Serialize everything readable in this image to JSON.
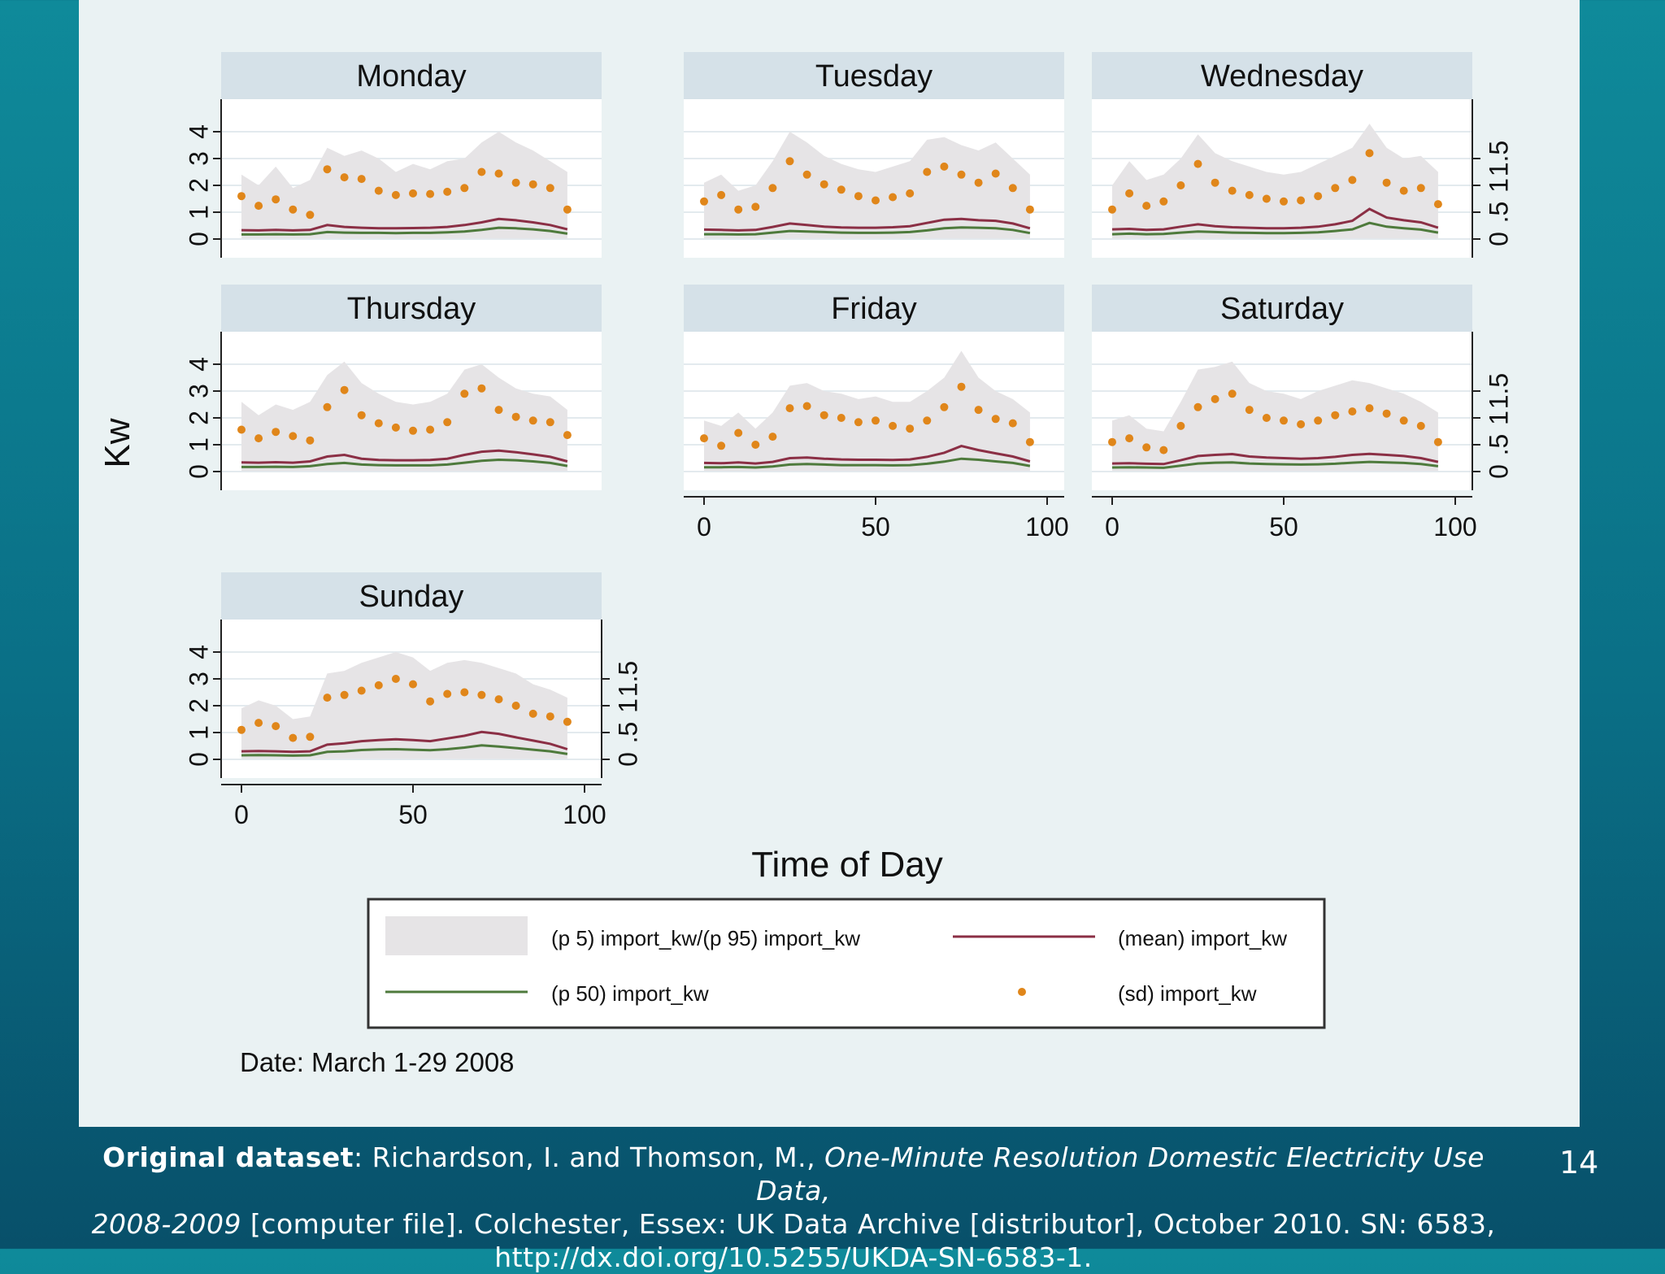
{
  "slide_number": "14",
  "date_note": "Date: March 1-29 2008",
  "citation": {
    "label": "Original dataset",
    "text1": ": Richardson, I. and Thomson, M., ",
    "title_part1": "One-Minute Resolution Domestic Electricity Use Data,",
    "title_part2": "2008-2009",
    "text2": " [computer file]. Colchester, Essex: UK Data Archive [distributor], October 2010. SN: 6583,",
    "url": "http://dx.doi.org/10.5255/UKDA-SN-6583-1."
  },
  "colors": {
    "band": "#e6e4e6",
    "mean": "#8b2f45",
    "median": "#4e7a3c",
    "sd": "#e0861a",
    "strip": "#d5e1e8",
    "plot_bg": "#ffffff",
    "grid": "#e3eaee"
  },
  "chart_data": {
    "type": "line",
    "xlabel": "Time of Day",
    "ylabel": "Kw",
    "xlim": [
      0,
      100
    ],
    "ylim_left": [
      0,
      4
    ],
    "ylim_right": [
      0,
      1.5
    ],
    "x_ticks": [
      "0",
      "50",
      "100"
    ],
    "y_ticks_left": [
      "0",
      "1",
      "2",
      "3",
      "4"
    ],
    "y_ticks_right": [
      "0",
      ".5",
      "1",
      "1.5"
    ],
    "grid": true,
    "legend_position": "bottom",
    "legend": [
      {
        "label": "(p 5) import_kw/(p 95) import_kw",
        "style": "band"
      },
      {
        "label": "(mean) import_kw",
        "style": "mean"
      },
      {
        "label": "(p 50) import_kw",
        "style": "median"
      },
      {
        "label": "(sd) import_kw",
        "style": "sd"
      }
    ],
    "facets": [
      {
        "name": "Monday",
        "x": [
          0,
          5,
          10,
          15,
          20,
          25,
          30,
          35,
          40,
          45,
          50,
          55,
          60,
          65,
          70,
          75,
          80,
          85,
          90,
          95
        ],
        "p95": [
          2.4,
          2.0,
          2.7,
          1.9,
          2.2,
          3.4,
          3.1,
          3.3,
          3.0,
          2.5,
          2.8,
          2.6,
          2.9,
          3.0,
          3.6,
          4.0,
          3.6,
          3.3,
          2.9,
          2.5
        ],
        "mean": [
          0.33,
          0.32,
          0.34,
          0.32,
          0.34,
          0.52,
          0.45,
          0.42,
          0.4,
          0.4,
          0.41,
          0.42,
          0.45,
          0.52,
          0.62,
          0.75,
          0.7,
          0.62,
          0.52,
          0.36
        ],
        "p50": [
          0.17,
          0.17,
          0.18,
          0.17,
          0.18,
          0.26,
          0.24,
          0.23,
          0.23,
          0.22,
          0.23,
          0.23,
          0.25,
          0.28,
          0.34,
          0.42,
          0.4,
          0.36,
          0.3,
          0.2
        ],
        "sd": [
          0.8,
          0.62,
          0.74,
          0.55,
          0.45,
          1.3,
          1.15,
          1.12,
          0.9,
          0.82,
          0.85,
          0.84,
          0.88,
          0.95,
          1.25,
          1.22,
          1.05,
          1.02,
          0.95,
          0.55
        ]
      },
      {
        "name": "Tuesday",
        "x": [
          0,
          5,
          10,
          15,
          20,
          25,
          30,
          35,
          40,
          45,
          50,
          55,
          60,
          65,
          70,
          75,
          80,
          85,
          90,
          95
        ],
        "p95": [
          2.1,
          2.4,
          1.8,
          2.0,
          2.9,
          4.0,
          3.6,
          3.1,
          2.8,
          2.6,
          2.5,
          2.7,
          2.9,
          3.7,
          3.8,
          3.5,
          3.3,
          3.6,
          3.0,
          2.4
        ],
        "mean": [
          0.35,
          0.34,
          0.32,
          0.34,
          0.45,
          0.58,
          0.52,
          0.46,
          0.43,
          0.42,
          0.42,
          0.44,
          0.48,
          0.6,
          0.72,
          0.75,
          0.7,
          0.68,
          0.58,
          0.4
        ],
        "p50": [
          0.18,
          0.18,
          0.17,
          0.18,
          0.24,
          0.3,
          0.28,
          0.26,
          0.24,
          0.23,
          0.23,
          0.24,
          0.26,
          0.32,
          0.4,
          0.43,
          0.42,
          0.4,
          0.34,
          0.22
        ],
        "sd": [
          0.7,
          0.82,
          0.55,
          0.6,
          0.95,
          1.45,
          1.2,
          1.02,
          0.92,
          0.8,
          0.72,
          0.78,
          0.85,
          1.25,
          1.35,
          1.2,
          1.05,
          1.22,
          0.95,
          0.55
        ]
      },
      {
        "name": "Wednesday",
        "x": [
          0,
          5,
          10,
          15,
          20,
          25,
          30,
          35,
          40,
          45,
          50,
          55,
          60,
          65,
          70,
          75,
          80,
          85,
          90,
          95
        ],
        "p95": [
          2.0,
          2.9,
          2.2,
          2.4,
          3.0,
          3.9,
          3.2,
          2.9,
          2.7,
          2.5,
          2.4,
          2.5,
          2.8,
          3.1,
          3.4,
          4.3,
          3.4,
          3.0,
          3.1,
          2.5
        ],
        "mean": [
          0.36,
          0.38,
          0.34,
          0.36,
          0.46,
          0.55,
          0.48,
          0.44,
          0.42,
          0.4,
          0.4,
          0.42,
          0.46,
          0.55,
          0.68,
          1.12,
          0.8,
          0.7,
          0.62,
          0.42
        ],
        "p50": [
          0.18,
          0.2,
          0.18,
          0.19,
          0.24,
          0.28,
          0.26,
          0.24,
          0.23,
          0.22,
          0.22,
          0.23,
          0.25,
          0.3,
          0.36,
          0.6,
          0.46,
          0.4,
          0.35,
          0.24
        ],
        "sd": [
          0.55,
          0.85,
          0.62,
          0.7,
          1.0,
          1.4,
          1.05,
          0.9,
          0.82,
          0.75,
          0.7,
          0.72,
          0.8,
          0.95,
          1.1,
          1.6,
          1.05,
          0.9,
          0.95,
          0.65
        ]
      },
      {
        "name": "Thursday",
        "x": [
          0,
          5,
          10,
          15,
          20,
          25,
          30,
          35,
          40,
          45,
          50,
          55,
          60,
          65,
          70,
          75,
          80,
          85,
          90,
          95
        ],
        "p95": [
          2.6,
          2.1,
          2.5,
          2.3,
          2.6,
          3.6,
          4.1,
          3.3,
          2.9,
          2.6,
          2.5,
          2.6,
          2.9,
          3.8,
          4.0,
          3.5,
          3.1,
          2.9,
          2.8,
          2.3
        ],
        "mean": [
          0.34,
          0.33,
          0.35,
          0.33,
          0.38,
          0.56,
          0.62,
          0.48,
          0.43,
          0.42,
          0.42,
          0.43,
          0.48,
          0.62,
          0.74,
          0.78,
          0.72,
          0.64,
          0.55,
          0.38
        ],
        "p50": [
          0.17,
          0.17,
          0.18,
          0.17,
          0.2,
          0.28,
          0.32,
          0.26,
          0.24,
          0.23,
          0.23,
          0.23,
          0.26,
          0.33,
          0.4,
          0.44,
          0.42,
          0.38,
          0.32,
          0.21
        ],
        "sd": [
          0.78,
          0.62,
          0.74,
          0.66,
          0.58,
          1.2,
          1.52,
          1.05,
          0.9,
          0.82,
          0.76,
          0.78,
          0.92,
          1.45,
          1.55,
          1.15,
          1.02,
          0.95,
          0.92,
          0.68
        ]
      },
      {
        "name": "Friday",
        "x": [
          0,
          5,
          10,
          15,
          20,
          25,
          30,
          35,
          40,
          45,
          50,
          55,
          60,
          65,
          70,
          75,
          80,
          85,
          90,
          95
        ],
        "p95": [
          1.9,
          1.7,
          2.2,
          1.6,
          2.2,
          3.2,
          3.3,
          3.0,
          2.9,
          2.7,
          2.8,
          2.6,
          2.6,
          3.0,
          3.5,
          4.5,
          3.5,
          3.0,
          2.7,
          2.2
        ],
        "mean": [
          0.32,
          0.31,
          0.34,
          0.3,
          0.36,
          0.5,
          0.52,
          0.48,
          0.45,
          0.44,
          0.44,
          0.43,
          0.45,
          0.55,
          0.7,
          0.95,
          0.8,
          0.68,
          0.56,
          0.38
        ],
        "p50": [
          0.16,
          0.16,
          0.17,
          0.15,
          0.19,
          0.26,
          0.28,
          0.26,
          0.24,
          0.24,
          0.24,
          0.23,
          0.24,
          0.29,
          0.37,
          0.48,
          0.44,
          0.38,
          0.32,
          0.21
        ],
        "sd": [
          0.62,
          0.48,
          0.72,
          0.5,
          0.65,
          1.18,
          1.22,
          1.05,
          1.0,
          0.92,
          0.95,
          0.85,
          0.8,
          0.95,
          1.2,
          1.58,
          1.15,
          0.98,
          0.9,
          0.55
        ]
      },
      {
        "name": "Saturday",
        "x": [
          0,
          5,
          10,
          15,
          20,
          25,
          30,
          35,
          40,
          45,
          50,
          55,
          60,
          65,
          70,
          75,
          80,
          85,
          90,
          95
        ],
        "p95": [
          1.9,
          2.1,
          1.6,
          1.5,
          2.6,
          3.8,
          3.9,
          4.1,
          3.3,
          3.0,
          2.9,
          2.7,
          3.0,
          3.2,
          3.4,
          3.3,
          3.1,
          2.9,
          2.6,
          2.2
        ],
        "mean": [
          0.3,
          0.31,
          0.29,
          0.28,
          0.42,
          0.58,
          0.62,
          0.65,
          0.56,
          0.52,
          0.5,
          0.48,
          0.5,
          0.55,
          0.62,
          0.66,
          0.62,
          0.58,
          0.5,
          0.36
        ],
        "p50": [
          0.15,
          0.16,
          0.15,
          0.14,
          0.22,
          0.3,
          0.33,
          0.34,
          0.3,
          0.28,
          0.27,
          0.26,
          0.27,
          0.29,
          0.33,
          0.36,
          0.34,
          0.32,
          0.28,
          0.2
        ],
        "sd": [
          0.55,
          0.62,
          0.45,
          0.4,
          0.85,
          1.2,
          1.35,
          1.45,
          1.15,
          1.0,
          0.95,
          0.88,
          0.95,
          1.05,
          1.12,
          1.18,
          1.08,
          0.95,
          0.85,
          0.55
        ]
      },
      {
        "name": "Sunday",
        "x": [
          0,
          5,
          10,
          15,
          20,
          25,
          30,
          35,
          40,
          45,
          50,
          55,
          60,
          65,
          70,
          75,
          80,
          85,
          90,
          95
        ],
        "p95": [
          1.9,
          2.2,
          2.0,
          1.5,
          1.6,
          3.2,
          3.3,
          3.6,
          3.8,
          4.0,
          3.8,
          3.3,
          3.6,
          3.7,
          3.6,
          3.4,
          3.2,
          2.8,
          2.6,
          2.3
        ],
        "mean": [
          0.3,
          0.31,
          0.3,
          0.28,
          0.3,
          0.55,
          0.6,
          0.68,
          0.72,
          0.75,
          0.72,
          0.68,
          0.78,
          0.88,
          1.02,
          0.95,
          0.82,
          0.7,
          0.58,
          0.38
        ],
        "p50": [
          0.15,
          0.16,
          0.15,
          0.14,
          0.15,
          0.28,
          0.3,
          0.35,
          0.37,
          0.38,
          0.36,
          0.34,
          0.38,
          0.44,
          0.52,
          0.48,
          0.42,
          0.36,
          0.3,
          0.2
        ],
        "sd": [
          0.55,
          0.68,
          0.62,
          0.4,
          0.42,
          1.15,
          1.2,
          1.28,
          1.38,
          1.5,
          1.4,
          1.08,
          1.22,
          1.25,
          1.2,
          1.12,
          1.0,
          0.85,
          0.8,
          0.7
        ]
      }
    ]
  }
}
